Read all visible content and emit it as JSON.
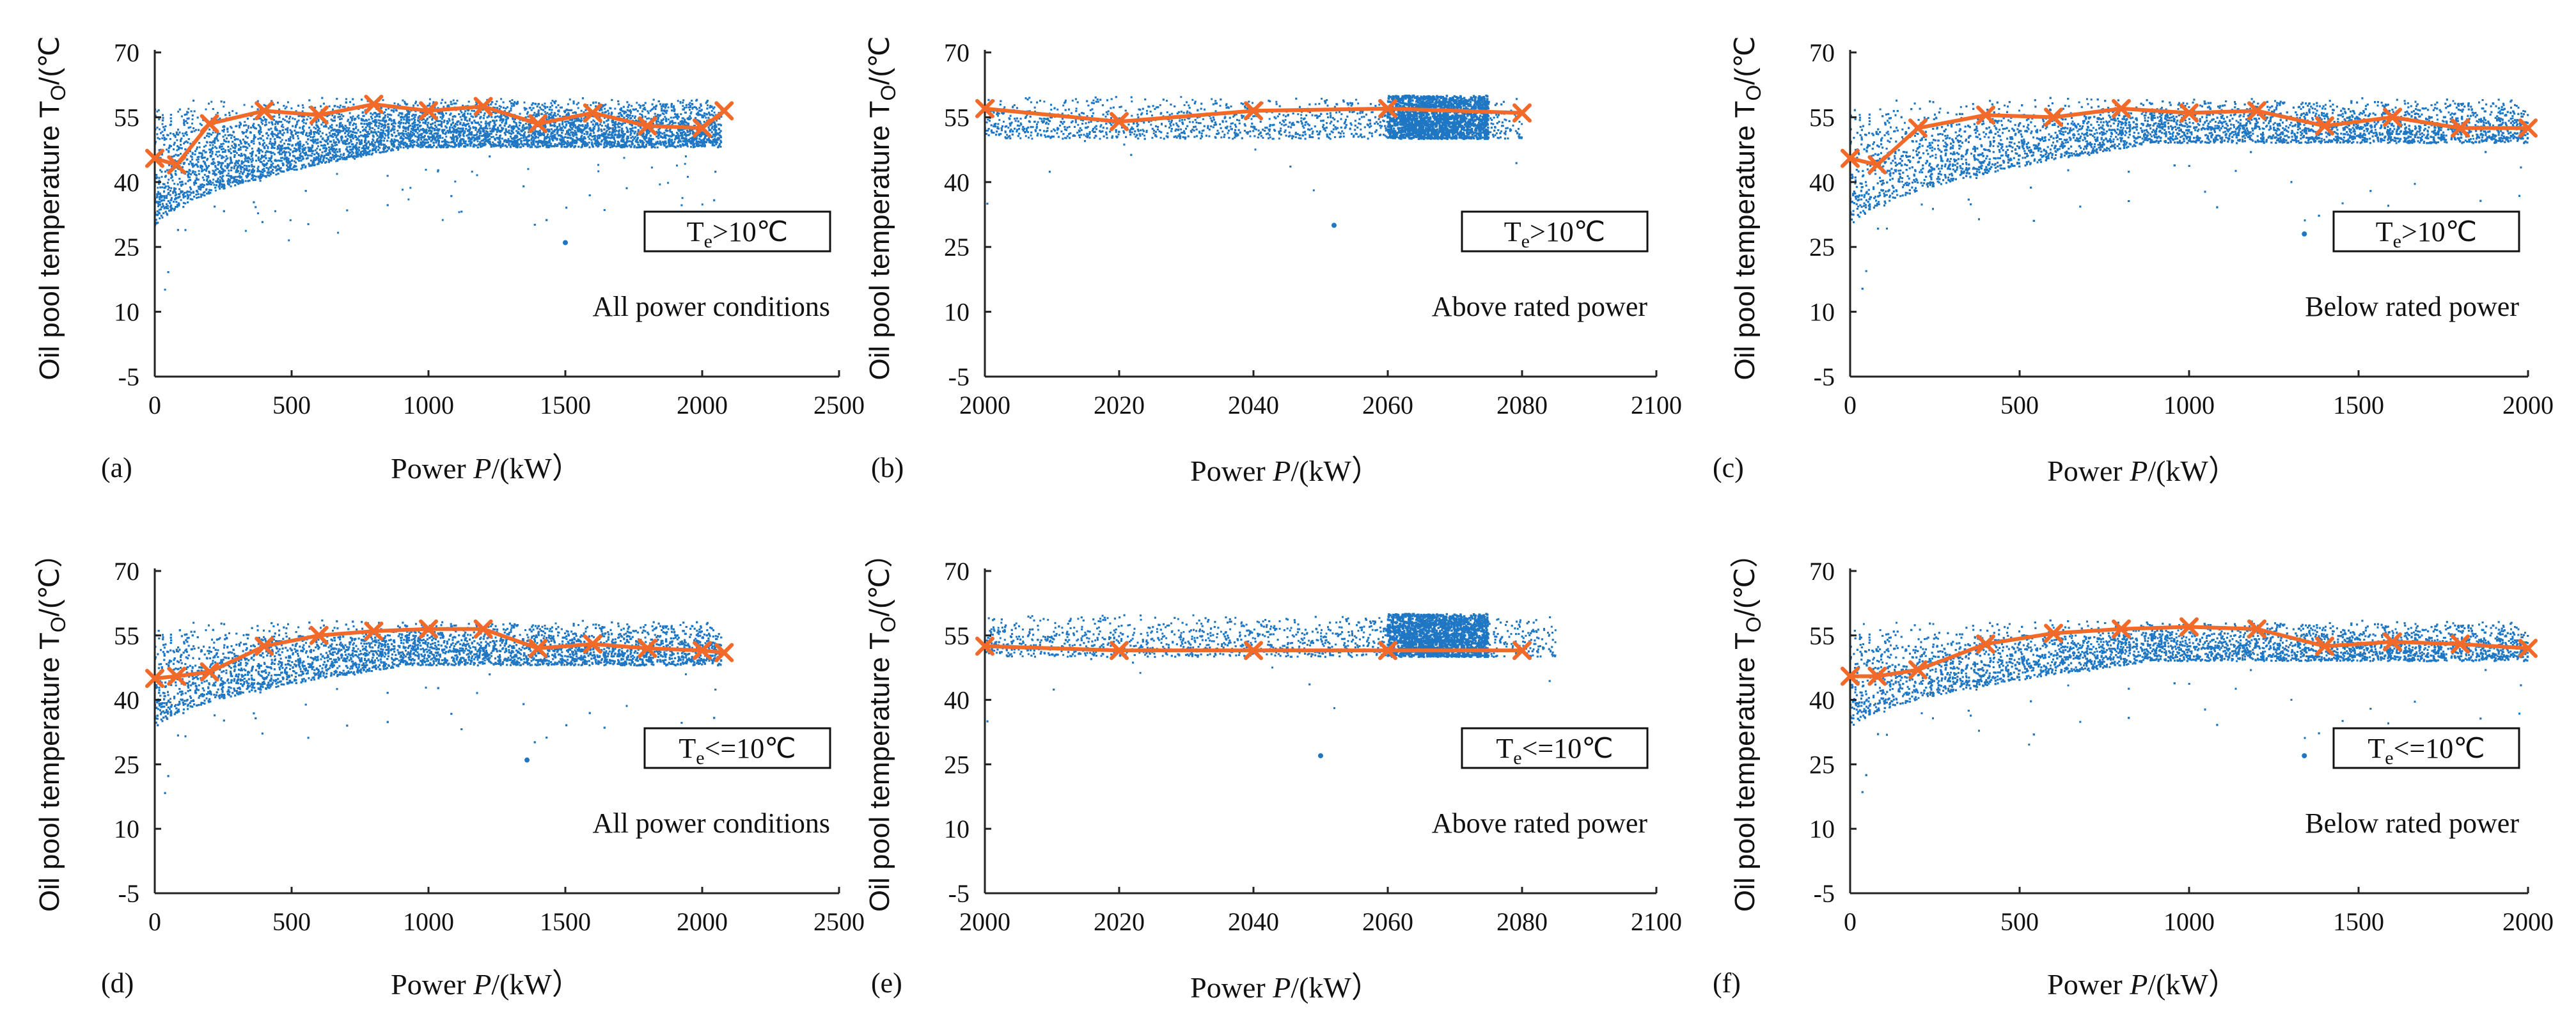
{
  "colors": {
    "scatter": "#1f77c4",
    "line": "#f26a2a",
    "axis": "#222222"
  },
  "chart_data": [
    {
      "type": "scatter",
      "panel_label": "(a)",
      "ylabel": "Oil pool temperature T",
      "ylabel_sub": "O",
      "ylabel_unit": "/(℃",
      "ylabel_unit_close": "",
      "xlabel": "Power ",
      "xlabel_var": "P",
      "xlabel_unit": "/(kW）",
      "xlim": [
        0,
        2500
      ],
      "ylim": [
        -5,
        70
      ],
      "xticks": [
        "0",
        "500",
        "1000",
        "1500",
        "2000",
        "2500"
      ],
      "yticks": [
        "-5",
        "10",
        "25",
        "40",
        "55",
        "70"
      ],
      "condition": "All power conditions",
      "legend_pre": "T",
      "legend_sub": "e",
      "legend_post": ">10℃",
      "mean_line": {
        "x": [
          0,
          80,
          200,
          400,
          600,
          800,
          1000,
          1200,
          1400,
          1600,
          1800,
          2000,
          2080
        ],
        "y": [
          45.5,
          44,
          53.5,
          56.5,
          55.5,
          58,
          56.5,
          57.5,
          53.5,
          56,
          53,
          52.5,
          56.5
        ]
      },
      "cloud": {
        "x_min": 0,
        "x_max": 2070,
        "upper": 59.5,
        "lower_start": 28,
        "lower_end": 48,
        "dense_x": null,
        "stray": [
          1500,
          26
        ]
      }
    },
    {
      "type": "scatter",
      "panel_label": "(b)",
      "ylabel": "Oil pool temperature  T",
      "ylabel_sub": "O",
      "ylabel_unit": "/(℃",
      "ylabel_unit_close": "",
      "xlabel": "Power  ",
      "xlabel_var": "P",
      "xlabel_unit": "/(kW）",
      "xlim": [
        2000,
        2100
      ],
      "ylim": [
        -5,
        70
      ],
      "xticks": [
        "2000",
        "2020",
        "2040",
        "2060",
        "2080",
        "2100"
      ],
      "yticks": [
        "-5",
        "10",
        "25",
        "40",
        "55",
        "70"
      ],
      "condition": "Above rated power",
      "legend_pre": "T",
      "legend_sub": "e",
      "legend_post": ">10℃",
      "mean_line": {
        "x": [
          2000,
          2020,
          2040,
          2060,
          2080
        ],
        "y": [
          57,
          54,
          56.5,
          57,
          56
        ]
      },
      "cloud": {
        "x_min": 2000,
        "x_max": 2080,
        "upper": 60,
        "lower_start": 50,
        "lower_end": 50,
        "dense_x": [
          2060,
          2075
        ],
        "stray": [
          2052,
          30
        ]
      }
    },
    {
      "type": "scatter",
      "panel_label": "(c)",
      "ylabel": "Oil pool temperature  T",
      "ylabel_sub": "O",
      "ylabel_unit": "/(℃",
      "ylabel_unit_close": "",
      "xlabel": "Power  ",
      "xlabel_var": "P",
      "xlabel_unit": "/(kW）",
      "xlim": [
        0,
        2000
      ],
      "ylim": [
        -5,
        70
      ],
      "xticks": [
        "0",
        "500",
        "1000",
        "1500",
        "2000"
      ],
      "yticks": [
        "-5",
        "10",
        "25",
        "40",
        "55",
        "70"
      ],
      "condition": "Below rated power",
      "legend_pre": "T",
      "legend_sub": "e",
      "legend_post": ">10℃",
      "mean_line": {
        "x": [
          0,
          80,
          200,
          400,
          600,
          800,
          1000,
          1200,
          1400,
          1600,
          1800,
          2000
        ],
        "y": [
          45.5,
          44,
          52.5,
          55.5,
          55,
          57,
          56,
          56.5,
          53,
          55,
          52.5,
          52.5
        ]
      },
      "cloud": {
        "x_min": 0,
        "x_max": 2000,
        "upper": 59.5,
        "lower_start": 28,
        "lower_end": 49,
        "dense_x": null,
        "stray": [
          1340,
          28
        ]
      }
    },
    {
      "type": "scatter",
      "panel_label": "(d)",
      "ylabel": "Oil pool temperature T",
      "ylabel_sub": "O",
      "ylabel_unit": "/(℃",
      "ylabel_unit_close": "）",
      "xlabel": "Power ",
      "xlabel_var": "P",
      "xlabel_unit": "/(kW）",
      "xlim": [
        0,
        2500
      ],
      "ylim": [
        -5,
        70
      ],
      "xticks": [
        "0",
        "500",
        "1000",
        "1500",
        "2000",
        "2500"
      ],
      "yticks": [
        "-5",
        "10",
        "25",
        "40",
        "55",
        "70"
      ],
      "condition": "All power conditions",
      "legend_pre": "T",
      "legend_sub": "e",
      "legend_post": "<=10℃",
      "mean_line": {
        "x": [
          0,
          80,
          200,
          400,
          600,
          800,
          1000,
          1200,
          1400,
          1600,
          1800,
          2000,
          2080
        ],
        "y": [
          45,
          45.5,
          46.5,
          52.5,
          55,
          56,
          56.5,
          56.5,
          52,
          53,
          52,
          51.5,
          51
        ]
      },
      "cloud": {
        "x_min": 0,
        "x_max": 2070,
        "upper": 58.5,
        "lower_start": 32,
        "lower_end": 48,
        "dense_x": null,
        "stray": [
          1360,
          26
        ]
      }
    },
    {
      "type": "scatter",
      "panel_label": "(e)",
      "ylabel": "Oil pool temperature  T",
      "ylabel_sub": "O",
      "ylabel_unit": "/(℃",
      "ylabel_unit_close": "）",
      "xlabel": "Power  ",
      "xlabel_var": "P",
      "xlabel_unit": "/(kW）",
      "xlim": [
        2000,
        2100
      ],
      "ylim": [
        -5,
        70
      ],
      "xticks": [
        "2000",
        "2020",
        "2040",
        "2060",
        "2080",
        "2100"
      ],
      "yticks": [
        "-5",
        "10",
        "25",
        "40",
        "55",
        "70"
      ],
      "condition": "Above rated power",
      "legend_pre": "T",
      "legend_sub": "e",
      "legend_post": "<=10℃",
      "mean_line": {
        "x": [
          2000,
          2020,
          2040,
          2060,
          2080
        ],
        "y": [
          52.5,
          51.5,
          51.5,
          51.5,
          51.5
        ]
      },
      "cloud": {
        "x_min": 2000,
        "x_max": 2085,
        "upper": 60,
        "lower_start": 50,
        "lower_end": 50,
        "dense_x": [
          2060,
          2075
        ],
        "stray": [
          2050,
          27
        ]
      }
    },
    {
      "type": "scatter",
      "panel_label": "(f)",
      "ylabel": "Oil pool temperature  T",
      "ylabel_sub": "O",
      "ylabel_unit": "/(℃",
      "ylabel_unit_close": "）",
      "xlabel": "Power  ",
      "xlabel_var": "P",
      "xlabel_unit": "/(kW）",
      "xlim": [
        0,
        2000
      ],
      "ylim": [
        -5,
        70
      ],
      "xticks": [
        "0",
        "500",
        "1000",
        "1500",
        "2000"
      ],
      "yticks": [
        "-5",
        "10",
        "25",
        "40",
        "55",
        "70"
      ],
      "condition": "Below rated power",
      "legend_pre": "T",
      "legend_sub": "e",
      "legend_post": "<=10℃",
      "mean_line": {
        "x": [
          0,
          80,
          200,
          400,
          600,
          800,
          1000,
          1200,
          1400,
          1600,
          1800,
          2000
        ],
        "y": [
          45.5,
          45.5,
          47,
          53,
          55.5,
          56.5,
          57,
          56.5,
          52.5,
          53.5,
          53,
          52
        ]
      },
      "cloud": {
        "x_min": 0,
        "x_max": 2000,
        "upper": 58.5,
        "lower_start": 32,
        "lower_end": 49,
        "dense_x": null,
        "stray": [
          1340,
          27
        ]
      }
    }
  ]
}
